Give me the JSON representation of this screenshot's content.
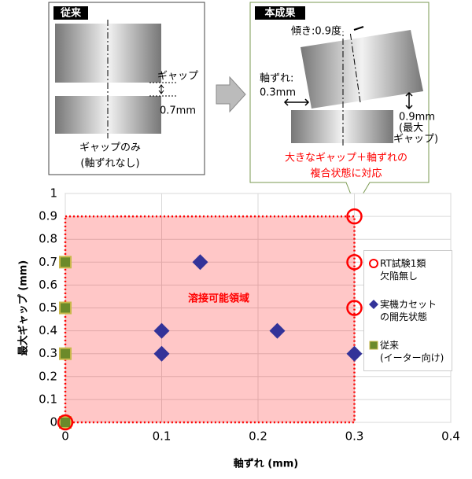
{
  "diagram": {
    "left": {
      "title": "従来",
      "gap_label": "ギャップ",
      "gap_value": "0.7mm",
      "caption": [
        "ギャップのみ",
        "(軸ずれなし)"
      ]
    },
    "right": {
      "title": "本成果",
      "tilt": "傾き:0.9度",
      "offset_label": "軸ずれ:",
      "offset_value": "0.3mm",
      "gap_value": "0.9mm",
      "gap_label": [
        "(最大",
        "ギャップ)"
      ],
      "callout": [
        "大きなギャップ＋軸ずれの",
        "複合状態に対応"
      ]
    }
  },
  "chart_data": {
    "type": "scatter",
    "x_label": "軸ずれ (mm)",
    "y_label": "最大ギャップ (mm)",
    "xlim": [
      0,
      0.4
    ],
    "xticks": [
      0,
      0.1,
      0.2,
      0.3,
      0.4
    ],
    "ylim": [
      0,
      1
    ],
    "yticks": [
      0,
      0.1,
      0.2,
      0.3,
      0.4,
      0.5,
      0.6,
      0.7,
      0.8,
      0.9,
      1
    ],
    "grid": true,
    "legend": "right",
    "region": {
      "x": [
        0,
        0.3
      ],
      "y": [
        0,
        0.9
      ],
      "label": "溶接可能領域",
      "color": "#ff0000"
    },
    "series": [
      {
        "name": "RT試験1類\n欠陥無し",
        "color": "#ff0000",
        "marker": "circle",
        "x": [
          0,
          0.3,
          0.3,
          0.3
        ],
        "values": [
          0,
          0.9,
          0.7,
          0.5
        ]
      },
      {
        "name": "実機カセット\nの開先状態",
        "color": "#333399",
        "marker": "diamond",
        "x": [
          0.1,
          0.1,
          0.14,
          0.22,
          0.3
        ],
        "values": [
          0.4,
          0.3,
          0.7,
          0.4,
          0.3
        ]
      },
      {
        "name": "従来\n(イーター向け)",
        "color": "#6b8a2a",
        "marker": "square",
        "x": [
          0,
          0,
          0,
          0
        ],
        "values": [
          0.7,
          0.5,
          0.3,
          0
        ]
      }
    ]
  }
}
